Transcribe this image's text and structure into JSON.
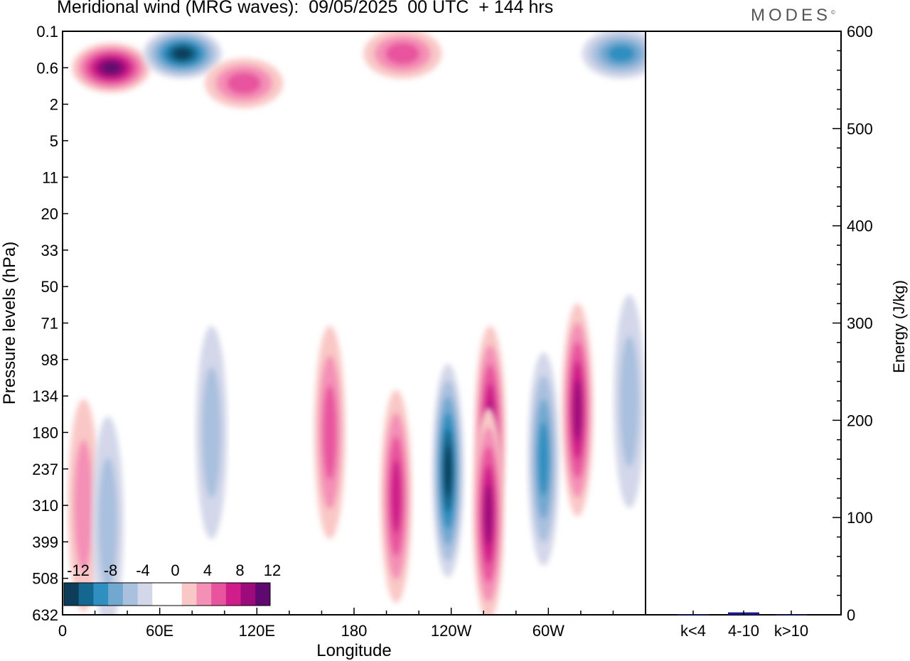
{
  "header": {
    "title": "Meridional wind (MRG waves):  09/05/2025  00 UTC  + 144 hrs",
    "brand": "MODES",
    "brand_mark": "©"
  },
  "colors": {
    "neg": [
      "#0d3d58",
      "#14688f",
      "#2f8fc0",
      "#72a8d0",
      "#a9c0de",
      "#d3d7e9"
    ],
    "zero": "#ffffff",
    "pos": [
      "#f9c8c6",
      "#f48fb6",
      "#e8559e",
      "#cf1d8a",
      "#9c0a7c",
      "#5e0870"
    ],
    "frame": "#000000",
    "energy_bar": "#1a1a8c"
  },
  "chart_data": [
    {
      "type": "heatmap",
      "title": "Meridional wind (MRG waves):  09/05/2025  00 UTC  + 144 hrs",
      "xlabel": "Longitude",
      "ylabel": "Pressure levels (hPa)",
      "x_ticks": [
        "0",
        "60E",
        "120E",
        "180",
        "120W",
        "60W"
      ],
      "x_tick_values": [
        0,
        60,
        120,
        180,
        240,
        300
      ],
      "xlim": [
        0,
        360
      ],
      "y_ticks": [
        "0.1",
        "0.6",
        "2",
        "5",
        "11",
        "20",
        "33",
        "50",
        "71",
        "98",
        "134",
        "180",
        "237",
        "310",
        "399",
        "508",
        "632"
      ],
      "colorbar": {
        "labels": [
          "-12",
          "-8",
          "-4",
          "0",
          "4",
          "8",
          "12"
        ],
        "levels": [
          -14,
          -12,
          -10,
          -8,
          -6,
          -4,
          -2,
          2,
          4,
          6,
          8,
          10,
          12,
          14
        ]
      },
      "features": [
        {
          "lon": 30,
          "level": "0.6",
          "value": 13
        },
        {
          "lon": 74,
          "level": "0.3",
          "value": -14
        },
        {
          "lon": 112,
          "level": "1",
          "value": 7
        },
        {
          "lon": 210,
          "level": "0.3",
          "value": 6
        },
        {
          "lon": 345,
          "level": "0.3",
          "value": -8
        },
        {
          "lon": 13,
          "level": "310",
          "value": 5
        },
        {
          "lon": 28,
          "level": "350",
          "value": -5
        },
        {
          "lon": 92,
          "level": "180",
          "value": -5
        },
        {
          "lon": 165,
          "level": "180",
          "value": 7
        },
        {
          "lon": 206,
          "level": "290",
          "value": 9
        },
        {
          "lon": 238,
          "level": "240",
          "value": -12
        },
        {
          "lon": 264,
          "level": "180",
          "value": 10
        },
        {
          "lon": 263,
          "level": "330",
          "value": 11
        },
        {
          "lon": 297,
          "level": "220",
          "value": -8
        },
        {
          "lon": 318,
          "level": "150",
          "value": 11
        },
        {
          "lon": 350,
          "level": "140",
          "value": -4
        }
      ]
    },
    {
      "type": "bar",
      "ylabel": "Energy (J/kg)",
      "categories": [
        "k<4",
        "4-10",
        "k>10"
      ],
      "values": [
        0.5,
        2.5,
        0.3
      ],
      "ylim": [
        0,
        600
      ],
      "y_ticks": [
        "0",
        "100",
        "200",
        "300",
        "400",
        "500",
        "600"
      ]
    }
  ]
}
